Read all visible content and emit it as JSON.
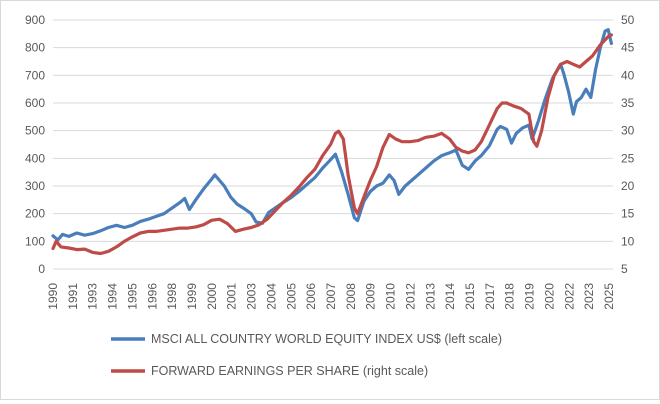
{
  "chart_data": {
    "type": "line",
    "title": "",
    "xlabel": "",
    "x_ticks": [
      "1990",
      "1991",
      "1993",
      "1994",
      "1995",
      "1996",
      "1998",
      "1999",
      "2000",
      "2001",
      "2003",
      "2004",
      "2005",
      "2006",
      "2007",
      "2008",
      "2009",
      "2010",
      "2012",
      "2013",
      "2014",
      "2015",
      "2017",
      "2018",
      "2019",
      "2020",
      "2022",
      "2023",
      "2025"
    ],
    "y_left": {
      "range": [
        0,
        900
      ],
      "ticks": [
        "0",
        "100",
        "200",
        "300",
        "400",
        "500",
        "600",
        "700",
        "800",
        "900"
      ]
    },
    "y_right": {
      "range": [
        5,
        50
      ],
      "ticks": [
        "5",
        "10",
        "15",
        "20",
        "25",
        "30",
        "35",
        "40",
        "45",
        "50"
      ]
    },
    "grid": true,
    "legend_position": "bottom",
    "series": [
      {
        "name": "MSCI ALL COUNTRY WORLD EQUITY INDEX US$ (left scale)",
        "axis": "left",
        "color": "#4a7ebb",
        "points": [
          [
            1990.0,
            120
          ],
          [
            1990.3,
            105
          ],
          [
            1990.6,
            125
          ],
          [
            1991.0,
            118
          ],
          [
            1991.5,
            130
          ],
          [
            1992.0,
            122
          ],
          [
            1992.5,
            128
          ],
          [
            1993.0,
            138
          ],
          [
            1993.5,
            150
          ],
          [
            1994.0,
            158
          ],
          [
            1994.5,
            150
          ],
          [
            1995.0,
            158
          ],
          [
            1995.5,
            172
          ],
          [
            1996.0,
            180
          ],
          [
            1996.5,
            190
          ],
          [
            1997.0,
            200
          ],
          [
            1997.5,
            220
          ],
          [
            1998.0,
            240
          ],
          [
            1998.3,
            255
          ],
          [
            1998.6,
            215
          ],
          [
            1999.0,
            250
          ],
          [
            1999.5,
            290
          ],
          [
            2000.0,
            325
          ],
          [
            2000.2,
            340
          ],
          [
            2000.5,
            320
          ],
          [
            2000.8,
            300
          ],
          [
            2001.2,
            260
          ],
          [
            2001.6,
            235
          ],
          [
            2002.0,
            220
          ],
          [
            2002.5,
            200
          ],
          [
            2002.8,
            170
          ],
          [
            2003.2,
            165
          ],
          [
            2003.6,
            205
          ],
          [
            2004.0,
            220
          ],
          [
            2004.5,
            240
          ],
          [
            2005.0,
            258
          ],
          [
            2005.5,
            280
          ],
          [
            2006.0,
            305
          ],
          [
            2006.5,
            330
          ],
          [
            2007.0,
            365
          ],
          [
            2007.5,
            395
          ],
          [
            2007.8,
            415
          ],
          [
            2008.2,
            350
          ],
          [
            2008.6,
            270
          ],
          [
            2009.0,
            185
          ],
          [
            2009.2,
            175
          ],
          [
            2009.6,
            245
          ],
          [
            2010.0,
            280
          ],
          [
            2010.4,
            300
          ],
          [
            2010.8,
            310
          ],
          [
            2011.2,
            340
          ],
          [
            2011.5,
            320
          ],
          [
            2011.8,
            270
          ],
          [
            2012.2,
            300
          ],
          [
            2012.6,
            320
          ],
          [
            2013.0,
            340
          ],
          [
            2013.5,
            365
          ],
          [
            2014.0,
            390
          ],
          [
            2014.5,
            410
          ],
          [
            2015.0,
            420
          ],
          [
            2015.4,
            430
          ],
          [
            2015.8,
            375
          ],
          [
            2016.2,
            360
          ],
          [
            2016.6,
            390
          ],
          [
            2017.0,
            410
          ],
          [
            2017.5,
            445
          ],
          [
            2018.0,
            505
          ],
          [
            2018.2,
            515
          ],
          [
            2018.6,
            505
          ],
          [
            2018.9,
            455
          ],
          [
            2019.2,
            490
          ],
          [
            2019.6,
            510
          ],
          [
            2020.0,
            520
          ],
          [
            2020.2,
            470
          ],
          [
            2020.6,
            535
          ],
          [
            2021.0,
            610
          ],
          [
            2021.5,
            690
          ],
          [
            2022.0,
            740
          ],
          [
            2022.2,
            705
          ],
          [
            2022.5,
            640
          ],
          [
            2022.8,
            560
          ],
          [
            2023.0,
            605
          ],
          [
            2023.3,
            620
          ],
          [
            2023.6,
            650
          ],
          [
            2023.9,
            620
          ],
          [
            2024.2,
            720
          ],
          [
            2024.5,
            800
          ],
          [
            2024.8,
            860
          ],
          [
            2025.0,
            865
          ],
          [
            2025.2,
            815
          ]
        ]
      },
      {
        "name": "FORWARD EARNINGS PER SHARE (right scale)",
        "axis": "right",
        "color": "#be4b48",
        "points": [
          [
            1990.0,
            8.7
          ],
          [
            1990.2,
            10.0
          ],
          [
            1990.5,
            9.0
          ],
          [
            1991.0,
            8.8
          ],
          [
            1991.5,
            8.5
          ],
          [
            1992.0,
            8.6
          ],
          [
            1992.5,
            8.0
          ],
          [
            1993.0,
            7.8
          ],
          [
            1993.5,
            8.2
          ],
          [
            1994.0,
            9.0
          ],
          [
            1994.5,
            10.0
          ],
          [
            1995.0,
            10.8
          ],
          [
            1995.5,
            11.5
          ],
          [
            1996.0,
            11.8
          ],
          [
            1996.5,
            11.8
          ],
          [
            1997.0,
            12.0
          ],
          [
            1997.5,
            12.2
          ],
          [
            1998.0,
            12.4
          ],
          [
            1998.5,
            12.4
          ],
          [
            1999.0,
            12.6
          ],
          [
            1999.5,
            13.0
          ],
          [
            2000.0,
            13.8
          ],
          [
            2000.5,
            14.0
          ],
          [
            2001.0,
            13.2
          ],
          [
            2001.5,
            11.8
          ],
          [
            2002.0,
            12.2
          ],
          [
            2002.5,
            12.5
          ],
          [
            2003.0,
            13.0
          ],
          [
            2003.5,
            14.0
          ],
          [
            2004.0,
            15.5
          ],
          [
            2004.5,
            17.0
          ],
          [
            2005.0,
            18.3
          ],
          [
            2005.5,
            19.8
          ],
          [
            2006.0,
            21.5
          ],
          [
            2006.5,
            23.0
          ],
          [
            2007.0,
            25.5
          ],
          [
            2007.5,
            27.5
          ],
          [
            2007.8,
            29.5
          ],
          [
            2008.0,
            29.9
          ],
          [
            2008.3,
            28.5
          ],
          [
            2008.6,
            22.0
          ],
          [
            2009.0,
            16.0
          ],
          [
            2009.2,
            15.0
          ],
          [
            2009.6,
            18.0
          ],
          [
            2010.0,
            21.0
          ],
          [
            2010.4,
            23.5
          ],
          [
            2010.8,
            27.0
          ],
          [
            2011.2,
            29.3
          ],
          [
            2011.6,
            28.5
          ],
          [
            2012.0,
            28.0
          ],
          [
            2012.5,
            28.0
          ],
          [
            2013.0,
            28.2
          ],
          [
            2013.5,
            28.8
          ],
          [
            2014.0,
            29.0
          ],
          [
            2014.5,
            29.5
          ],
          [
            2015.0,
            28.5
          ],
          [
            2015.4,
            27.0
          ],
          [
            2015.8,
            26.3
          ],
          [
            2016.2,
            26.0
          ],
          [
            2016.6,
            26.5
          ],
          [
            2017.0,
            28.0
          ],
          [
            2017.5,
            31.0
          ],
          [
            2018.0,
            34.0
          ],
          [
            2018.3,
            35.0
          ],
          [
            2018.6,
            35.0
          ],
          [
            2019.0,
            34.5
          ],
          [
            2019.5,
            34.0
          ],
          [
            2020.0,
            33.0
          ],
          [
            2020.3,
            28.0
          ],
          [
            2020.5,
            27.2
          ],
          [
            2020.8,
            30.0
          ],
          [
            2021.2,
            36.0
          ],
          [
            2021.6,
            40.0
          ],
          [
            2022.0,
            42.0
          ],
          [
            2022.4,
            42.5
          ],
          [
            2022.8,
            42.0
          ],
          [
            2023.2,
            41.5
          ],
          [
            2023.6,
            42.5
          ],
          [
            2024.0,
            43.5
          ],
          [
            2024.5,
            45.5
          ],
          [
            2025.0,
            47.0
          ],
          [
            2025.2,
            47.3
          ]
        ]
      }
    ]
  }
}
